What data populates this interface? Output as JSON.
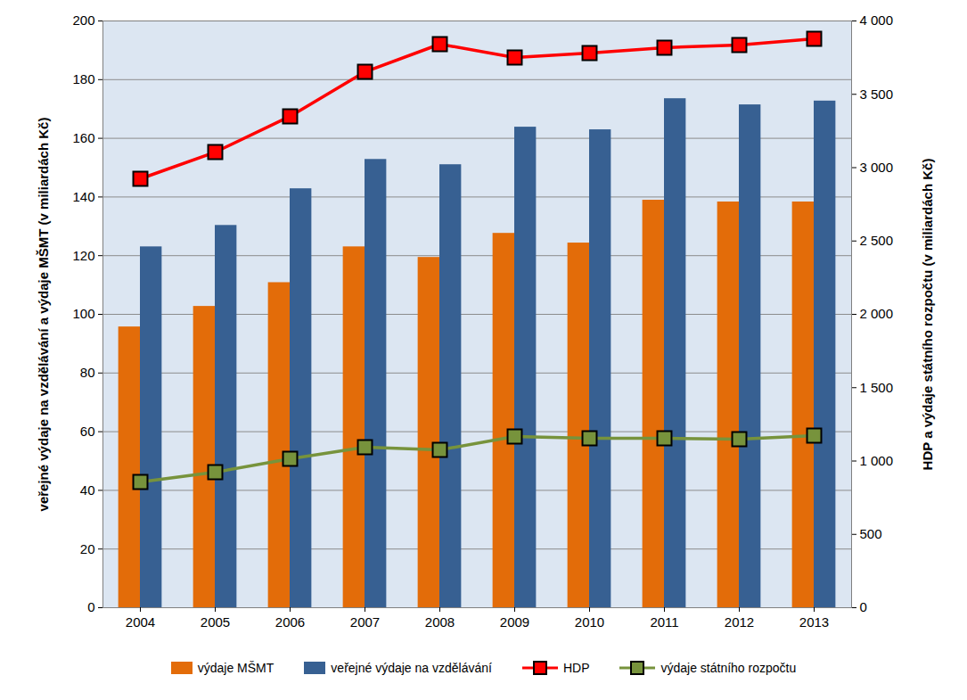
{
  "chart_data": {
    "type": "bar",
    "categories": [
      "2004",
      "2005",
      "2006",
      "2007",
      "2008",
      "2009",
      "2010",
      "2011",
      "2012",
      "2013"
    ],
    "y_label": "veřejné výdaje na vzdělávání a výdaje MŠMT (v miliardách Kč)",
    "y2_label": "HDP a výdaje státního rozpočtu (v miliardách Kč)",
    "ylim": [
      0,
      200
    ],
    "yticks": [
      0,
      20,
      40,
      60,
      80,
      100,
      120,
      140,
      160,
      180,
      200
    ],
    "y2lim": [
      0,
      4000
    ],
    "y2ticks": [
      0,
      500,
      {
        "value": 1000,
        "label": "1 000"
      },
      {
        "value": 1500,
        "label": "1 500"
      },
      {
        "value": 2000,
        "label": "2 000"
      },
      {
        "value": 2500,
        "label": "2 500"
      },
      {
        "value": 3000,
        "label": "3 000"
      },
      {
        "value": 3500,
        "label": "3 500"
      },
      {
        "value": 4000,
        "label": "4 000"
      }
    ],
    "grid": true,
    "legend": "bottom",
    "series": [
      {
        "name": "výdaje MŠMT",
        "type": "bar",
        "color": "#e36c09",
        "values": [
          95.7,
          102.7,
          110.8,
          123.0,
          119.4,
          127.6,
          124.3,
          138.9,
          138.3,
          138.3
        ]
      },
      {
        "name": "veřejné výdaje na vzdělávání",
        "type": "bar",
        "color": "#376092",
        "values": [
          123.0,
          130.3,
          142.8,
          152.8,
          151.0,
          163.8,
          162.9,
          173.5,
          171.4,
          172.7
        ]
      },
      {
        "name": "HDP",
        "type": "line",
        "axis": "y2",
        "color": "#ff0000",
        "marker": "square",
        "values": [
          2924,
          3106,
          3350,
          3653,
          3842,
          3751,
          3781,
          3818,
          3836,
          3878
        ]
      },
      {
        "name": "výdaje státního rozpočtu",
        "type": "line",
        "axis": "y2",
        "color": "#77933c",
        "marker": "square",
        "values": [
          857,
          924,
          1015,
          1094,
          1076,
          1167,
          1155,
          1155,
          1149,
          1173
        ]
      }
    ]
  }
}
